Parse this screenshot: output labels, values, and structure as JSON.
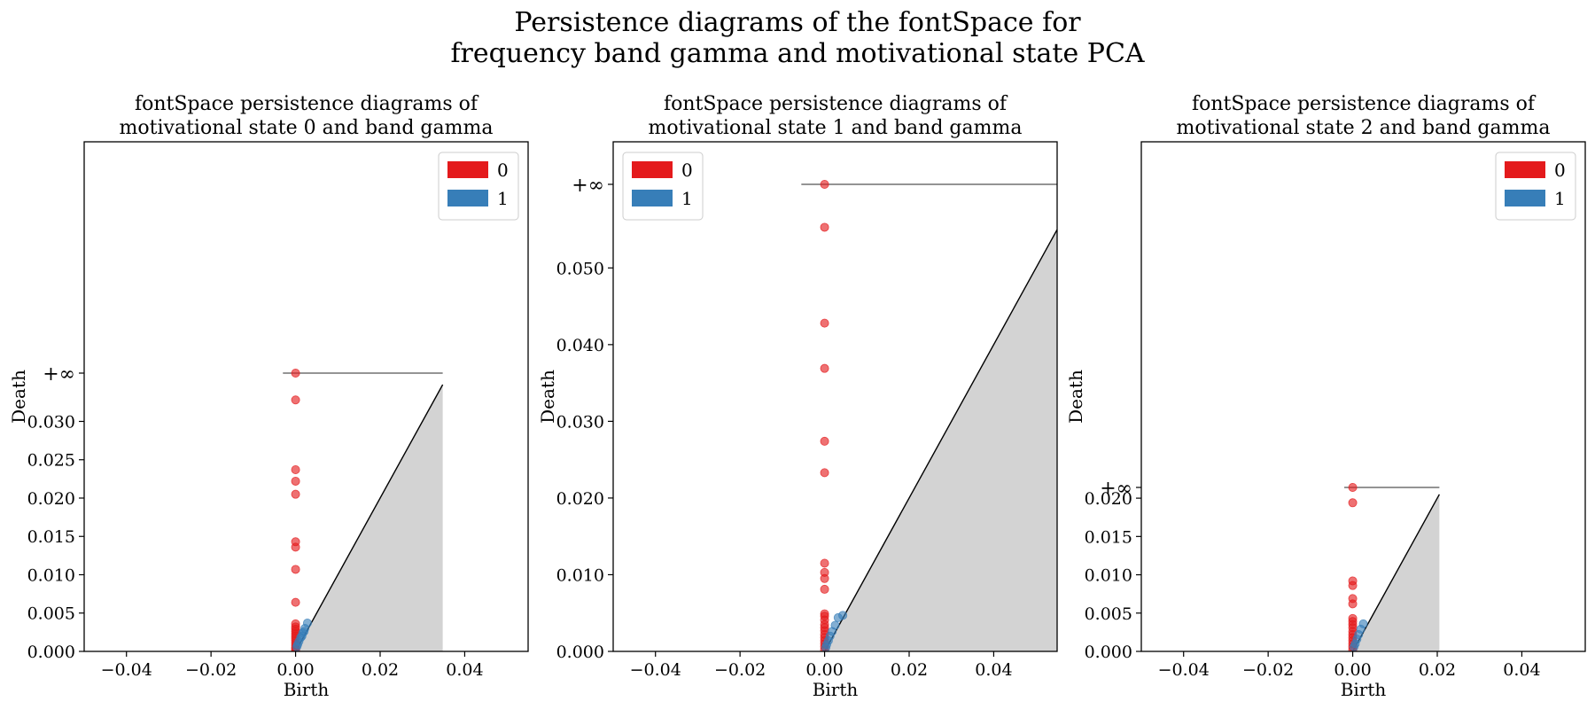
{
  "figure": {
    "suptitle_line1": "Persistence diagrams of the fontSpace for",
    "suptitle_line2": "frequency band gamma and motivational state PCA"
  },
  "colors": {
    "h0": "#e41a1c",
    "h1": "#377eb8",
    "diagonal_fill": "#d3d3d3",
    "infinity_line": "#555555"
  },
  "chart_data": [
    {
      "type": "scatter",
      "title_line1": "fontSpace persistence diagrams of",
      "title_line2": "motivational state 0 and band gamma",
      "xlabel": "Birth",
      "ylabel": "Death",
      "xlim": [
        -0.05,
        0.055
      ],
      "ylim": [
        0,
        0.0363
      ],
      "xticks": [
        -0.04,
        -0.02,
        0.0,
        0.02,
        0.04
      ],
      "xtick_labels": [
        "−0.04",
        "−0.02",
        "0.00",
        "0.02",
        "0.04"
      ],
      "yticks": [
        0.0,
        0.005,
        0.01,
        0.015,
        0.02,
        0.025,
        0.03
      ],
      "ytick_labels": [
        "0.000",
        "0.005",
        "0.010",
        "0.015",
        "0.020",
        "0.025",
        "0.030"
      ],
      "inf_label": "+∞",
      "inf_y": 0.0363,
      "inf_line_x": [
        -0.003,
        0.0348
      ],
      "diagonal_end": 0.0348,
      "legend": {
        "position": "top-right",
        "entries": [
          "0",
          "1"
        ]
      },
      "series": [
        {
          "name": "0",
          "color_key": "h0",
          "points": [
            [
              0,
              0.0363
            ],
            [
              0,
              0.0328
            ],
            [
              0,
              0.0237
            ],
            [
              0,
              0.0222
            ],
            [
              0,
              0.0205
            ],
            [
              0,
              0.0143
            ],
            [
              0,
              0.0136
            ],
            [
              0,
              0.0107
            ],
            [
              0,
              0.0064
            ],
            [
              0,
              0.0036
            ],
            [
              0,
              0.0032
            ],
            [
              0,
              0.0029
            ],
            [
              0,
              0.0026
            ],
            [
              0,
              0.0023
            ],
            [
              0,
              0.002
            ],
            [
              0,
              0.0017
            ],
            [
              0,
              0.0014
            ],
            [
              0,
              0.0011
            ],
            [
              0,
              0.0008
            ],
            [
              0,
              0.0005
            ],
            [
              0,
              0.0003
            ],
            [
              0,
              0.0001
            ]
          ]
        },
        {
          "name": "1",
          "color_key": "h1",
          "points": [
            [
              0.0028,
              0.0037
            ],
            [
              0.0022,
              0.003
            ],
            [
              0.0017,
              0.0024
            ],
            [
              0.0012,
              0.0018
            ],
            [
              0.0008,
              0.0013
            ],
            [
              0.0005,
              0.0009
            ],
            [
              0.0003,
              0.0006
            ],
            [
              0.0015,
              0.002
            ],
            [
              0.002,
              0.0026
            ]
          ]
        }
      ]
    },
    {
      "type": "scatter",
      "title_line1": "fontSpace persistence diagrams of",
      "title_line2": "motivational state 1 and band gamma",
      "xlabel": "Birth",
      "ylabel": "Death",
      "xlim": [
        -0.05,
        0.055
      ],
      "ylim": [
        0,
        0.0609
      ],
      "xticks": [
        -0.04,
        -0.02,
        0.0,
        0.02,
        0.04
      ],
      "xtick_labels": [
        "−0.04",
        "−0.02",
        "0.00",
        "0.02",
        "0.04"
      ],
      "yticks": [
        0.0,
        0.01,
        0.02,
        0.03,
        0.04,
        0.05
      ],
      "ytick_labels": [
        "0.000",
        "0.010",
        "0.020",
        "0.030",
        "0.040",
        "0.050"
      ],
      "inf_label": "+∞",
      "inf_y": 0.0609,
      "inf_line_x": [
        -0.0055,
        0.055
      ],
      "diagonal_end": 0.055,
      "legend": {
        "position": "top-left",
        "entries": [
          "0",
          "1"
        ]
      },
      "series": [
        {
          "name": "0",
          "color_key": "h0",
          "points": [
            [
              0,
              0.0609
            ],
            [
              0,
              0.0553
            ],
            [
              0,
              0.0428
            ],
            [
              0,
              0.0369
            ],
            [
              0,
              0.0274
            ],
            [
              0,
              0.0233
            ],
            [
              0,
              0.0115
            ],
            [
              0,
              0.0103
            ],
            [
              0,
              0.0095
            ],
            [
              0,
              0.0081
            ],
            [
              0,
              0.0049
            ],
            [
              0,
              0.0046
            ],
            [
              0,
              0.0041
            ],
            [
              0,
              0.0035
            ],
            [
              0,
              0.0031
            ],
            [
              0,
              0.0027
            ],
            [
              0,
              0.0022
            ],
            [
              0,
              0.0018
            ],
            [
              0,
              0.0014
            ],
            [
              0,
              0.001
            ],
            [
              0,
              0.0006
            ],
            [
              0,
              0.0002
            ]
          ]
        },
        {
          "name": "1",
          "color_key": "h1",
          "points": [
            [
              0.0032,
              0.0044
            ],
            [
              0.0043,
              0.0047
            ],
            [
              0.0025,
              0.0034
            ],
            [
              0.0018,
              0.0026
            ],
            [
              0.0013,
              0.002
            ],
            [
              0.0009,
              0.0014
            ],
            [
              0.0005,
              0.0009
            ],
            [
              0.0003,
              0.0005
            ]
          ]
        }
      ]
    },
    {
      "type": "scatter",
      "title_line1": "fontSpace persistence diagrams of",
      "title_line2": "motivational state 2 and band gamma",
      "xlabel": "Birth",
      "ylabel": "Death",
      "xlim": [
        -0.05,
        0.055
      ],
      "ylim": [
        0,
        0.0214
      ],
      "xticks": [
        -0.04,
        -0.02,
        0.0,
        0.02,
        0.04
      ],
      "xtick_labels": [
        "−0.04",
        "−0.02",
        "0.00",
        "0.02",
        "0.04"
      ],
      "yticks": [
        0.0,
        0.005,
        0.01,
        0.015,
        0.02
      ],
      "ytick_labels": [
        "0.000",
        "0.005",
        "0.010",
        "0.015",
        "0.020"
      ],
      "inf_label": "+∞",
      "inf_y": 0.0214,
      "inf_line_x": [
        -0.002,
        0.0205
      ],
      "diagonal_end": 0.0205,
      "legend": {
        "position": "top-right",
        "entries": [
          "0",
          "1"
        ]
      },
      "series": [
        {
          "name": "0",
          "color_key": "h0",
          "points": [
            [
              0,
              0.0214
            ],
            [
              0,
              0.0194
            ],
            [
              0,
              0.0092
            ],
            [
              0,
              0.0086
            ],
            [
              0,
              0.0069
            ],
            [
              0,
              0.0062
            ],
            [
              0,
              0.0043
            ],
            [
              0,
              0.0039
            ],
            [
              0,
              0.0035
            ],
            [
              0,
              0.0031
            ],
            [
              0,
              0.0026
            ],
            [
              0,
              0.0022
            ],
            [
              0,
              0.0018
            ],
            [
              0,
              0.0014
            ],
            [
              0,
              0.001
            ],
            [
              0,
              0.0006
            ],
            [
              0,
              0.0002
            ]
          ]
        },
        {
          "name": "1",
          "color_key": "h1",
          "points": [
            [
              0.0025,
              0.0036
            ],
            [
              0.0019,
              0.0029
            ],
            [
              0.0014,
              0.0022
            ],
            [
              0.001,
              0.0016
            ],
            [
              0.0006,
              0.001
            ],
            [
              0.0003,
              0.0006
            ]
          ]
        }
      ]
    }
  ]
}
